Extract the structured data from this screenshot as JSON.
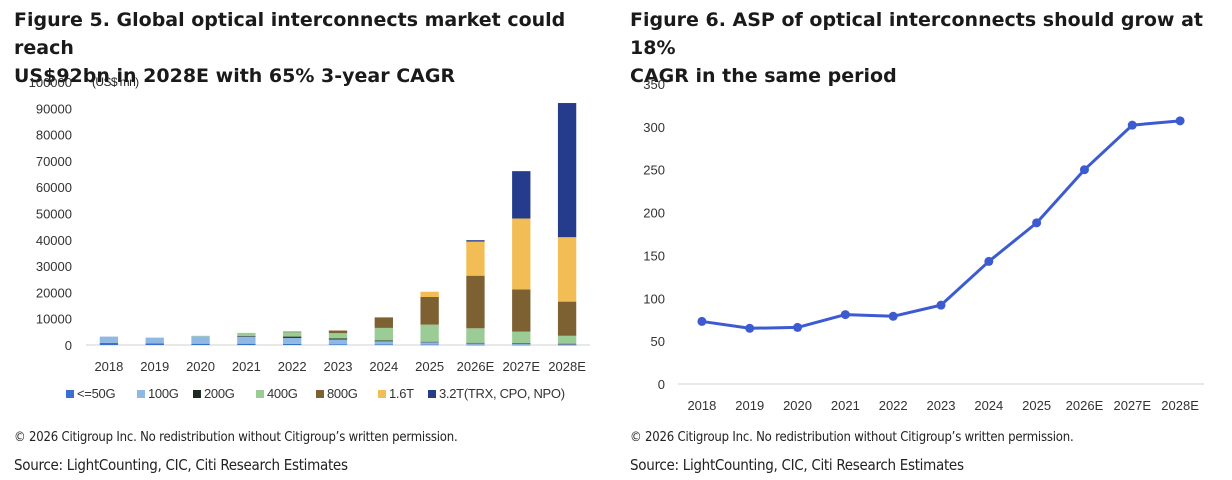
{
  "left": {
    "title_line1": "Figure 5. Global optical interconnects market could reach",
    "title_line2": "US$92bn in 2028E with 65% 3-year CAGR",
    "copyright": "© 2026 Citigroup Inc. No redistribution without Citigroup’s written permission.",
    "source": "Source: LightCounting, CIC, Citi Research Estimates"
  },
  "right": {
    "title_line1": "Figure 6. ASP of optical interconnects should grow at 18%",
    "title_line2": "CAGR in the same period",
    "copyright": "© 2026 Citigroup Inc. No redistribution without Citigroup’s written permission.",
    "source": "Source: LightCounting, CIC, Citi Research Estimates"
  },
  "chart_data": [
    {
      "type": "bar",
      "stacked": true,
      "unit_label": "(US$ mn)",
      "categories": [
        "2018",
        "2019",
        "2020",
        "2021",
        "2022",
        "2023",
        "2024",
        "2025",
        "2026E",
        "2027E",
        "2028E"
      ],
      "ylim": [
        0,
        100000
      ],
      "yticks": [
        0,
        10000,
        20000,
        30000,
        40000,
        50000,
        60000,
        70000,
        80000,
        90000,
        100000
      ],
      "grid": false,
      "legend_position": "bottom",
      "series": [
        {
          "name": "<=50G",
          "color": "#3a6fd0",
          "values": [
            800,
            600,
            500,
            500,
            400,
            300,
            200,
            150,
            100,
            100,
            100
          ]
        },
        {
          "name": "100G",
          "color": "#8fb8e2",
          "values": [
            2400,
            2200,
            2800,
            2700,
            2300,
            1800,
            1200,
            900,
            600,
            400,
            300
          ]
        },
        {
          "name": "200G",
          "color": "#1f2b22",
          "values": [
            0,
            0,
            0,
            200,
            500,
            400,
            300,
            200,
            150,
            100,
            100
          ]
        },
        {
          "name": "400G",
          "color": "#9ccc95",
          "values": [
            0,
            0,
            200,
            1200,
            1800,
            2000,
            4800,
            6500,
            5500,
            4500,
            3000
          ]
        },
        {
          "name": "800G",
          "color": "#7e6133",
          "values": [
            0,
            0,
            0,
            0,
            100,
            1000,
            4000,
            10500,
            20000,
            16000,
            13000
          ]
        },
        {
          "name": "1.6T",
          "color": "#f2bd55",
          "values": [
            0,
            0,
            0,
            0,
            0,
            0,
            0,
            2000,
            13000,
            27000,
            24500
          ]
        },
        {
          "name": "3.2T(TRX, CPO, NPO)",
          "color": "#253b8c",
          "values": [
            0,
            0,
            0,
            0,
            0,
            0,
            0,
            0,
            500,
            18000,
            51000
          ]
        }
      ]
    },
    {
      "type": "line",
      "categories": [
        "2018",
        "2019",
        "2020",
        "2021",
        "2022",
        "2023",
        "2024",
        "2025",
        "2026E",
        "2027E",
        "2028E"
      ],
      "ylim": [
        0,
        350
      ],
      "yticks": [
        0,
        50,
        100,
        150,
        200,
        250,
        300,
        350
      ],
      "grid": false,
      "color": "#3d5bd1",
      "values": [
        73,
        65,
        66,
        81,
        79,
        92,
        143,
        188,
        250,
        302,
        307
      ]
    }
  ]
}
